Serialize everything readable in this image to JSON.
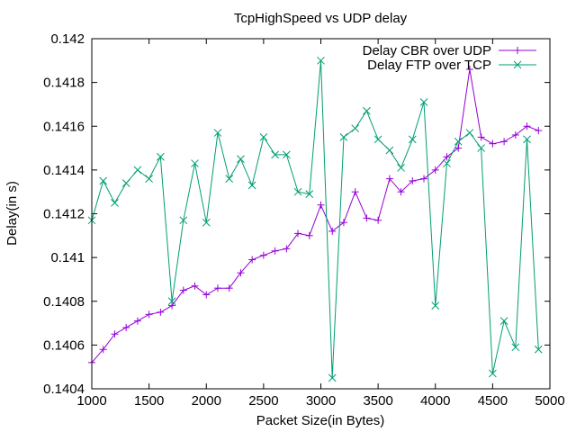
{
  "chart_data": {
    "type": "line",
    "title": "TcpHighSpeed vs UDP delay",
    "xlabel": "Packet Size(in Bytes)",
    "ylabel": "Delay(in s)",
    "xlim": [
      1000,
      5000
    ],
    "ylim": [
      0.1404,
      0.142
    ],
    "x_ticks": [
      1000,
      1500,
      2000,
      2500,
      3000,
      3500,
      4000,
      4500,
      5000
    ],
    "y_ticks": [
      0.1404,
      0.1406,
      0.1408,
      0.141,
      0.1412,
      0.1414,
      0.1416,
      0.1418,
      0.142
    ],
    "x_tick_labels": [
      "1000",
      "1500",
      "2000",
      "2500",
      "3000",
      "3500",
      "4000",
      "4500",
      "5000"
    ],
    "y_tick_labels": [
      "0.1404",
      "0.1406",
      "0.1408",
      "0.141",
      "0.1412",
      "0.1414",
      "0.1416",
      "0.1418",
      "0.142"
    ],
    "grid": false,
    "legend_position": "top-right",
    "series": [
      {
        "name": "Delay CBR over UDP",
        "color": "#9400d3",
        "marker": "plus",
        "x": [
          1000,
          1100,
          1200,
          1300,
          1400,
          1500,
          1600,
          1700,
          1800,
          1900,
          2000,
          2100,
          2200,
          2300,
          2400,
          2500,
          2600,
          2700,
          2800,
          2900,
          3000,
          3100,
          3200,
          3300,
          3400,
          3500,
          3600,
          3700,
          3800,
          3900,
          4000,
          4100,
          4200,
          4300,
          4400,
          4500,
          4600,
          4700,
          4800,
          4900
        ],
        "y": [
          0.14052,
          0.14058,
          0.14065,
          0.14068,
          0.14071,
          0.14074,
          0.14075,
          0.14078,
          0.14085,
          0.14087,
          0.14083,
          0.14086,
          0.14086,
          0.14093,
          0.14099,
          0.14101,
          0.14103,
          0.14104,
          0.14111,
          0.1411,
          0.14124,
          0.14112,
          0.14116,
          0.1413,
          0.14118,
          0.14117,
          0.14136,
          0.1413,
          0.14135,
          0.14136,
          0.1414,
          0.14146,
          0.1415,
          0.14186,
          0.14155,
          0.14152,
          0.14153,
          0.14156,
          0.1416,
          0.14158
        ]
      },
      {
        "name": "Delay FTP over TCP",
        "color": "#009e73",
        "marker": "cross",
        "x": [
          1000,
          1100,
          1200,
          1300,
          1400,
          1500,
          1600,
          1700,
          1800,
          1900,
          2000,
          2100,
          2200,
          2300,
          2400,
          2500,
          2600,
          2700,
          2800,
          2900,
          3000,
          3100,
          3200,
          3300,
          3400,
          3500,
          3600,
          3700,
          3800,
          3900,
          4000,
          4100,
          4200,
          4300,
          4400,
          4500,
          4600,
          4700,
          4800,
          4900
        ],
        "y": [
          0.14117,
          0.14135,
          0.14125,
          0.14134,
          0.1414,
          0.14136,
          0.14146,
          0.1408,
          0.14117,
          0.14143,
          0.14116,
          0.14157,
          0.14136,
          0.14145,
          0.14133,
          0.14155,
          0.14147,
          0.14147,
          0.1413,
          0.14129,
          0.1419,
          0.14045,
          0.14155,
          0.14159,
          0.14167,
          0.14154,
          0.14149,
          0.14141,
          0.14154,
          0.14171,
          0.14078,
          0.14143,
          0.14153,
          0.14157,
          0.1415,
          0.14047,
          0.14071,
          0.14059,
          0.14154,
          0.14058
        ]
      }
    ]
  }
}
